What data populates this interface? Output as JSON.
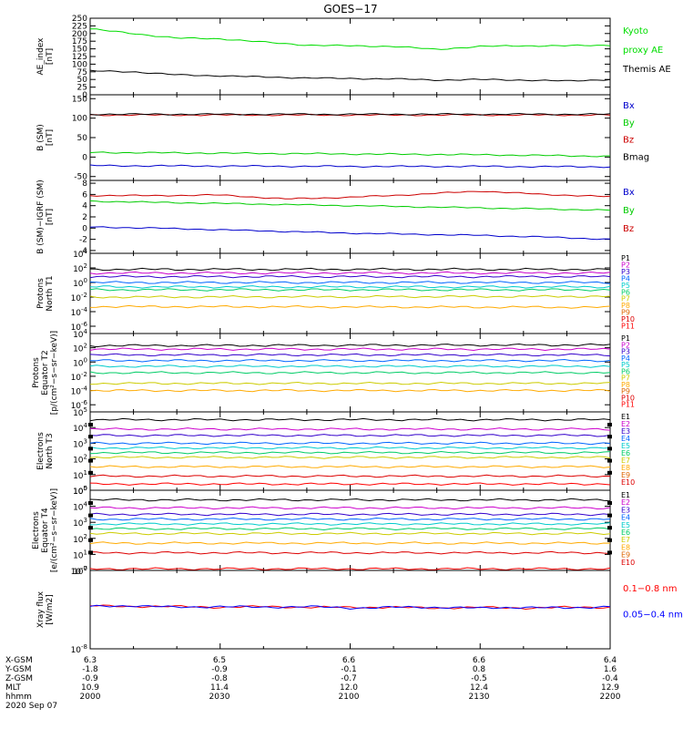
{
  "chart_data": [
    {
      "type": "line",
      "title": "GOES−17",
      "ylabel": [
        "AE_index",
        "[nT]"
      ],
      "ylim": [
        0,
        250
      ],
      "yticks": [
        "0",
        "25",
        "50",
        "75",
        "100",
        "125",
        "150",
        "175",
        "200",
        "225",
        "250"
      ],
      "x": [
        "2000",
        "2010",
        "2020",
        "2030",
        "2040",
        "2050",
        "2100",
        "2110",
        "2120",
        "2130",
        "2140",
        "2150",
        "2200"
      ],
      "series": [
        {
          "name": "Kyoto proxy AE",
          "color": "#00dd00",
          "values": [
            215,
            200,
            185,
            183,
            172,
            162,
            160,
            158,
            148,
            158,
            160,
            160,
            162
          ]
        },
        {
          "name": "Themis AE",
          "color": "#000000",
          "values": [
            78,
            75,
            65,
            62,
            58,
            55,
            53,
            52,
            48,
            50,
            48,
            45,
            50
          ]
        }
      ],
      "legend": [
        {
          "text": "Kyoto",
          "color": "#00dd00"
        },
        {
          "text": "proxy AE",
          "color": "#00dd00"
        },
        {
          "text": "Themis AE",
          "color": "#000000"
        }
      ]
    },
    {
      "type": "line",
      "ylabel": [
        "B (SM)",
        "[nT]"
      ],
      "ylim": [
        -60,
        160
      ],
      "yticks": [
        "-50",
        "0",
        "50",
        "100",
        "150"
      ],
      "x": [
        "2000",
        "2030",
        "2100",
        "2130",
        "2200"
      ],
      "series": [
        {
          "name": "Bx",
          "color": "#0000cc",
          "values": [
            -22,
            -23,
            -24,
            -24,
            -25
          ]
        },
        {
          "name": "By",
          "color": "#00cc00",
          "values": [
            12,
            10,
            8,
            6,
            2
          ]
        },
        {
          "name": "Bz",
          "color": "#cc0000",
          "values": [
            108,
            108,
            108,
            108,
            108
          ]
        },
        {
          "name": "Bmag",
          "color": "#000000",
          "values": [
            110,
            110,
            110,
            110,
            110
          ]
        }
      ],
      "legend": [
        {
          "text": "Bx",
          "color": "#0000cc"
        },
        {
          "text": "By",
          "color": "#00cc00"
        },
        {
          "text": "Bz",
          "color": "#cc0000"
        },
        {
          "text": "Bmag",
          "color": "#000000"
        }
      ]
    },
    {
      "type": "line",
      "ylabel": [
        "B (SM)−IGRF (SM)",
        "[nT]"
      ],
      "ylim": [
        -4.5,
        8.5
      ],
      "yticks": [
        "-4",
        "-2",
        "0",
        "2",
        "4",
        "6",
        "8"
      ],
      "x": [
        "2000",
        "2015",
        "2030",
        "2045",
        "2100",
        "2115",
        "2130",
        "2145",
        "2200"
      ],
      "series": [
        {
          "name": "Bx",
          "color": "#0000cc",
          "values": [
            0.2,
            0.0,
            -0.3,
            -0.6,
            -0.9,
            -1.1,
            -1.3,
            -1.6,
            -2.0
          ]
        },
        {
          "name": "By",
          "color": "#00cc00",
          "values": [
            4.8,
            4.6,
            4.4,
            4.2,
            4.0,
            3.8,
            3.6,
            3.4,
            3.2
          ]
        },
        {
          "name": "Bz",
          "color": "#cc0000",
          "values": [
            5.8,
            5.8,
            5.9,
            5.2,
            5.5,
            6.0,
            6.6,
            6.0,
            5.6
          ]
        }
      ],
      "legend": [
        {
          "text": "Bx",
          "color": "#0000cc"
        },
        {
          "text": "By",
          "color": "#00cc00"
        },
        {
          "text": "Bz",
          "color": "#cc0000"
        }
      ]
    },
    {
      "type": "line",
      "log": true,
      "ylabel": [
        "Protons",
        "North T1"
      ],
      "ylim": [
        -7,
        4
      ],
      "yticks": [
        4,
        2,
        0,
        -2,
        -4,
        -6
      ],
      "series": [
        {
          "name": "P1",
          "color": "#000000",
          "values": [
            1.8,
            1.8
          ]
        },
        {
          "name": "P2",
          "color": "#cc00cc",
          "values": [
            1.3,
            1.3
          ]
        },
        {
          "name": "P3",
          "color": "#3300cc",
          "values": [
            0.8,
            0.8
          ]
        },
        {
          "name": "P4",
          "color": "#0066ff",
          "values": [
            0.0,
            0.0
          ]
        },
        {
          "name": "P5",
          "color": "#00cccc",
          "values": [
            -0.6,
            -0.6
          ]
        },
        {
          "name": "P6",
          "color": "#00cc66",
          "values": [
            -1.0,
            -1.0
          ]
        },
        {
          "name": "P7",
          "color": "#cccc00",
          "values": [
            -2.0,
            -1.9
          ]
        },
        {
          "name": "P8",
          "color": "#ffaa00",
          "values": [
            -3.3,
            -3.4
          ]
        }
      ],
      "legend": [
        "P1",
        "P2",
        "P3",
        "P4",
        "P5",
        "P6",
        "P7",
        "P8",
        "P9",
        "P10",
        "P11"
      ]
    },
    {
      "type": "line",
      "log": true,
      "ylabel": [
        "Protons",
        "Equator T2",
        "[p/(cm²−s−sr−keV)]"
      ],
      "ylim": [
        -7,
        4
      ],
      "yticks": [
        4,
        2,
        0,
        -2,
        -4,
        -6
      ],
      "series": [
        {
          "name": "P1",
          "color": "#000000",
          "values": [
            2.3,
            2.4
          ]
        },
        {
          "name": "P2",
          "color": "#cc00cc",
          "values": [
            1.8,
            1.8
          ]
        },
        {
          "name": "P3",
          "color": "#3300cc",
          "values": [
            1.0,
            1.0
          ]
        },
        {
          "name": "P4",
          "color": "#0066ff",
          "values": [
            0.2,
            0.2
          ]
        },
        {
          "name": "P5",
          "color": "#00cccc",
          "values": [
            -0.6,
            -0.6
          ]
        },
        {
          "name": "P6",
          "color": "#00cc66",
          "values": [
            -1.5,
            -1.5
          ]
        },
        {
          "name": "P7",
          "color": "#cccc00",
          "values": [
            -3.0,
            -3.0
          ]
        },
        {
          "name": "P8",
          "color": "#ffaa00",
          "values": [
            -4.0,
            -4.0
          ]
        }
      ],
      "legend": [
        "P1",
        "P2",
        "P3",
        "P4",
        "P5",
        "P6",
        "P7",
        "P8",
        "P9",
        "P10",
        "P11"
      ]
    },
    {
      "type": "line",
      "log": true,
      "ylabel": [
        "Electrons",
        "North T3"
      ],
      "ylim": [
        0,
        5
      ],
      "yticks": [
        5,
        4,
        3,
        2,
        1,
        0
      ],
      "series": [
        {
          "name": "E1",
          "color": "#000000",
          "values": [
            4.5,
            4.5
          ]
        },
        {
          "name": "E2",
          "color": "#cc00cc",
          "values": [
            3.9,
            3.9
          ]
        },
        {
          "name": "E3",
          "color": "#3300cc",
          "values": [
            3.5,
            3.5
          ]
        },
        {
          "name": "E4",
          "color": "#0066ff",
          "values": [
            3.0,
            3.0
          ]
        },
        {
          "name": "E5",
          "color": "#00cccc",
          "values": [
            2.7,
            2.7
          ]
        },
        {
          "name": "E6",
          "color": "#00cc66",
          "values": [
            2.4,
            2.4
          ]
        },
        {
          "name": "E7",
          "color": "#cccc00",
          "values": [
            2.1,
            2.1
          ]
        },
        {
          "name": "E8",
          "color": "#ffaa00",
          "values": [
            1.5,
            1.5
          ]
        },
        {
          "name": "E9",
          "color": "#dd0000",
          "values": [
            0.9,
            0.9
          ]
        },
        {
          "name": "E10",
          "color": "#ff0000",
          "values": [
            0.4,
            0.4
          ]
        }
      ],
      "legend": [
        "E1",
        "E2",
        "E3",
        "E4",
        "E5",
        "E6",
        "E7",
        "E8",
        "E9",
        "E10"
      ]
    },
    {
      "type": "line",
      "log": true,
      "ylabel": [
        "Electrons",
        "Equator T4",
        "[e/(cm²−s−sr−keV)]"
      ],
      "ylim": [
        0,
        5
      ],
      "yticks": [
        5,
        4,
        3,
        2,
        1,
        0
      ],
      "series": [
        {
          "name": "E1",
          "color": "#000000",
          "values": [
            4.4,
            4.4
          ]
        },
        {
          "name": "E2",
          "color": "#cc00cc",
          "values": [
            3.9,
            3.9
          ]
        },
        {
          "name": "E3",
          "color": "#3300cc",
          "values": [
            3.5,
            3.5
          ]
        },
        {
          "name": "E4",
          "color": "#0066ff",
          "values": [
            3.2,
            3.2
          ]
        },
        {
          "name": "E5",
          "color": "#00cccc",
          "values": [
            2.9,
            2.9
          ]
        },
        {
          "name": "E6",
          "color": "#00cc66",
          "values": [
            2.6,
            2.6
          ]
        },
        {
          "name": "E7",
          "color": "#cccc00",
          "values": [
            2.3,
            2.3
          ]
        },
        {
          "name": "E8",
          "color": "#ffaa00",
          "values": [
            1.7,
            1.7
          ]
        },
        {
          "name": "E9",
          "color": "#dd0000",
          "values": [
            1.1,
            1.1
          ]
        },
        {
          "name": "E10",
          "color": "#ff0000",
          "values": [
            0.1,
            0.1
          ]
        }
      ],
      "legend": [
        "E1",
        "E2",
        "E3",
        "E4",
        "E5",
        "E6",
        "E7",
        "E8",
        "E9",
        "E10"
      ]
    },
    {
      "type": "line",
      "log": true,
      "ylabel": [
        "Xray flux",
        "[W/m2]"
      ],
      "ylim": [
        -8,
        -7
      ],
      "yticks": [
        -7,
        -8
      ],
      "x": [
        "2000",
        "2010",
        "2020",
        "2030",
        "2040",
        "2050",
        "2100",
        "2110",
        "2120",
        "2130",
        "2140",
        "2150",
        "2200"
      ],
      "series": [
        {
          "name": "0.1−0.8 nm",
          "color": "#ff0000",
          "values": [
            -7.45,
            -7.46,
            -7.46,
            -7.47,
            -7.46,
            -7.47,
            -7.47,
            -7.47,
            -7.48,
            -7.47,
            -7.48,
            -7.47,
            -7.47
          ]
        },
        {
          "name": "0.05−0.4 nm",
          "color": "#0000ff",
          "values": [
            -7.46,
            -7.45,
            -7.47,
            -7.46,
            -7.47,
            -7.46,
            -7.48,
            -7.47,
            -7.47,
            -7.48,
            -7.47,
            -7.48,
            -7.46
          ]
        }
      ],
      "legend": [
        {
          "text": "0.1−0.8 nm",
          "color": "#ff0000"
        },
        {
          "text": "0.05−0.4 nm",
          "color": "#0000ff"
        }
      ]
    }
  ],
  "footer": {
    "rows": [
      {
        "label": "X-GSM",
        "values": [
          "6.3",
          "6.5",
          "6.6",
          "6.6",
          "6.4"
        ]
      },
      {
        "label": "Y-GSM",
        "values": [
          "-1.8",
          "-0.9",
          "-0.1",
          "0.8",
          "1.6"
        ]
      },
      {
        "label": "Z-GSM",
        "values": [
          "-0.9",
          "-0.8",
          "-0.7",
          "-0.5",
          "-0.4"
        ]
      },
      {
        "label": "MLT",
        "values": [
          "10.9",
          "11.4",
          "12.0",
          "12.4",
          "12.9"
        ]
      },
      {
        "label": "hhmm",
        "values": [
          "2000",
          "2030",
          "2100",
          "2130",
          "2200"
        ]
      }
    ],
    "date": "2020 Sep 07"
  }
}
